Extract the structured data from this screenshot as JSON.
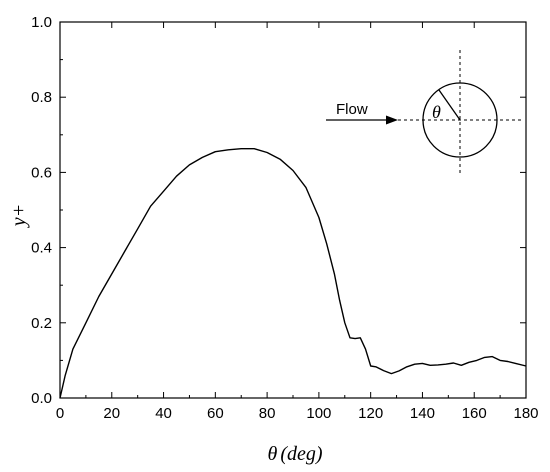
{
  "chart_data": {
    "type": "line",
    "title": "",
    "xlabel_symbol": "θ",
    "xlabel_unit": "(deg)",
    "ylabel": "y+",
    "xlim": [
      0,
      180
    ],
    "ylim": [
      0,
      1.0
    ],
    "xticks": [
      0,
      20,
      40,
      60,
      80,
      100,
      120,
      140,
      160,
      180
    ],
    "xtick_labels": [
      "0",
      "20",
      "40",
      "60",
      "80",
      "100",
      "120",
      "140",
      "160",
      "180"
    ],
    "yticks": [
      0,
      0.2,
      0.4,
      0.6,
      0.8,
      1.0
    ],
    "ytick_labels": [
      "0.0",
      "0.2",
      "0.4",
      "0.6",
      "0.8",
      "1.0"
    ],
    "grid": false,
    "series": [
      {
        "color": "#000000",
        "x": [
          0,
          2,
          5,
          10,
          15,
          20,
          25,
          30,
          35,
          40,
          45,
          50,
          55,
          60,
          65,
          70,
          75,
          80,
          85,
          90,
          95,
          100,
          103,
          106,
          108,
          110,
          112,
          114,
          116,
          118,
          120,
          122,
          125,
          128,
          131,
          134,
          137,
          140,
          143,
          146,
          149,
          152,
          155,
          158,
          161,
          164,
          167,
          170,
          173,
          176,
          180
        ],
        "y": [
          0.0,
          0.06,
          0.13,
          0.2,
          0.27,
          0.33,
          0.39,
          0.45,
          0.51,
          0.55,
          0.59,
          0.62,
          0.64,
          0.655,
          0.66,
          0.663,
          0.663,
          0.653,
          0.635,
          0.605,
          0.56,
          0.48,
          0.41,
          0.33,
          0.26,
          0.2,
          0.16,
          0.158,
          0.16,
          0.13,
          0.085,
          0.083,
          0.073,
          0.065,
          0.072,
          0.083,
          0.09,
          0.092,
          0.087,
          0.088,
          0.09,
          0.093,
          0.087,
          0.095,
          0.1,
          0.108,
          0.11,
          0.1,
          0.097,
          0.092,
          0.085
        ]
      }
    ],
    "inset": {
      "flow_label": "Flow",
      "angle_symbol": "θ"
    }
  }
}
